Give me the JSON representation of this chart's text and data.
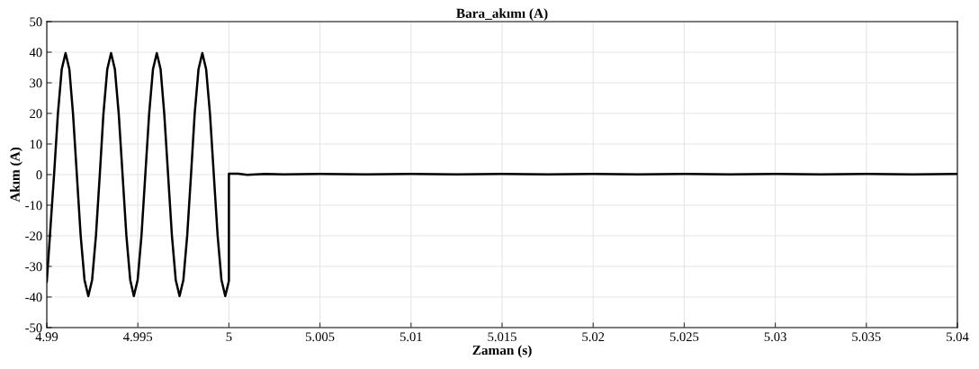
{
  "chart_data": {
    "type": "line",
    "title": "Bara_akımı (A)",
    "xlabel": "Zaman (s)",
    "ylabel": "Akım (A)",
    "series": [
      {
        "color": "#000000",
        "x": [
          4.99,
          4.9904,
          4.99061,
          4.99082,
          4.99103,
          4.99124,
          4.99144,
          4.99165,
          4.99186,
          4.99207,
          4.99228,
          4.99249,
          4.9927,
          4.99291,
          4.99311,
          4.99332,
          4.99353,
          4.99374,
          4.99395,
          4.99416,
          4.99437,
          4.99458,
          4.99478,
          4.99499,
          4.9952,
          4.99541,
          4.99562,
          4.99583,
          4.99604,
          4.99625,
          4.99645,
          4.99666,
          4.99687,
          4.99708,
          4.99729,
          4.9975,
          4.99771,
          4.99792,
          4.99812,
          4.99833,
          4.99854,
          4.99875,
          4.99896,
          4.99917,
          4.99938,
          4.99959,
          4.9998,
          5.0,
          5.0,
          5.0005,
          5.001,
          5.002,
          5.003,
          5.005,
          5.0075,
          5.01,
          5.0125,
          5.015,
          5.0175,
          5.02,
          5.0225,
          5.025,
          5.0275,
          5.03,
          5.0325,
          5.035,
          5.0375,
          5.04
        ],
        "values": [
          -35,
          0,
          19.9,
          34.4,
          39.7,
          34.4,
          19.9,
          0,
          -19.9,
          -34.4,
          -39.7,
          -34.4,
          -19.9,
          0,
          19.9,
          34.4,
          39.7,
          34.4,
          19.9,
          0,
          -19.9,
          -34.4,
          -39.7,
          -34.4,
          -19.9,
          0,
          19.9,
          34.4,
          39.7,
          34.4,
          19.9,
          0,
          -19.9,
          -34.4,
          -39.7,
          -34.4,
          -19.9,
          0,
          19.9,
          34.4,
          39.7,
          34.4,
          19.9,
          0,
          -19.9,
          -34.4,
          -39.7,
          -34.7,
          0.3,
          0.3,
          -0.1,
          0.2,
          0.1,
          0.2,
          0.1,
          0.2,
          0.1,
          0.2,
          0.1,
          0.2,
          0.1,
          0.2,
          0.1,
          0.2,
          0.1,
          0.2,
          0.1,
          0.2
        ]
      }
    ],
    "xlim": [
      4.99,
      5.04
    ],
    "ylim": [
      -50,
      50
    ],
    "xticks": [
      4.99,
      4.995,
      {
        "value": 5.0,
        "label": "5"
      },
      5.005,
      5.01,
      5.015,
      5.02,
      5.025,
      5.03,
      5.035,
      5.04
    ],
    "yticks": [
      -50,
      -40,
      -30,
      -20,
      -10,
      0,
      10,
      20,
      30,
      40,
      50
    ],
    "grid": true,
    "line_style": "solid",
    "marker": "none"
  }
}
